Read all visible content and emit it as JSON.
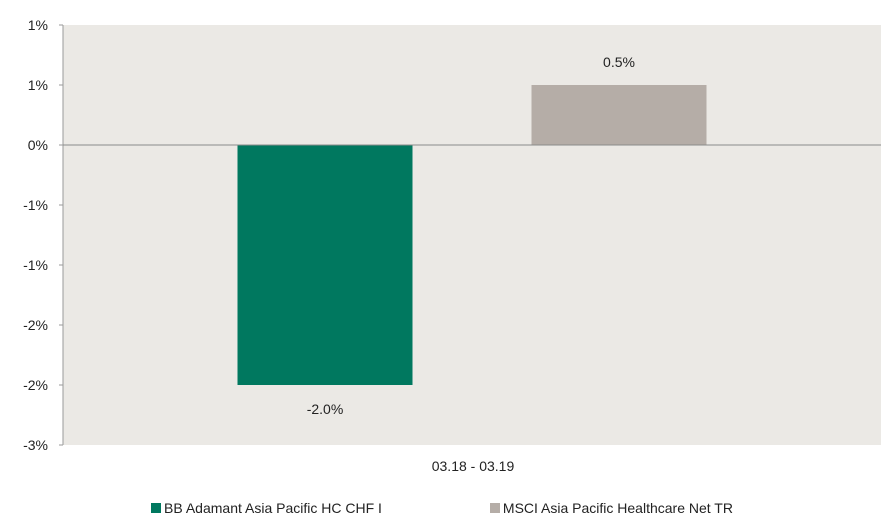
{
  "chart_data": {
    "type": "bar",
    "categories": [
      "03.18 - 03.19"
    ],
    "series": [
      {
        "name": "BB Adamant Asia Pacific HC CHF I",
        "values": [
          -2.0
        ],
        "label": "-2.0%",
        "color": "#00785f"
      },
      {
        "name": "MSCI Asia Pacific Healthcare Net TR",
        "values": [
          0.5
        ],
        "label": "0.5%",
        "color": "#b5ada7"
      }
    ],
    "yticks": [
      {
        "value": 1.0,
        "label": "1%"
      },
      {
        "value": 0.5,
        "label": "1%"
      },
      {
        "value": 0.0,
        "label": "0%"
      },
      {
        "value": -0.5,
        "label": "-1%"
      },
      {
        "value": -1.0,
        "label": "-1%"
      },
      {
        "value": -1.5,
        "label": "-2%"
      },
      {
        "value": -2.0,
        "label": "-2%"
      },
      {
        "value": -2.5,
        "label": "-3%"
      }
    ],
    "ylim": [
      -2.5,
      1.0
    ],
    "title": "",
    "xlabel": "",
    "ylabel": "",
    "grid": false,
    "legend_position": "bottom",
    "plot_background": "#ebe9e5"
  }
}
